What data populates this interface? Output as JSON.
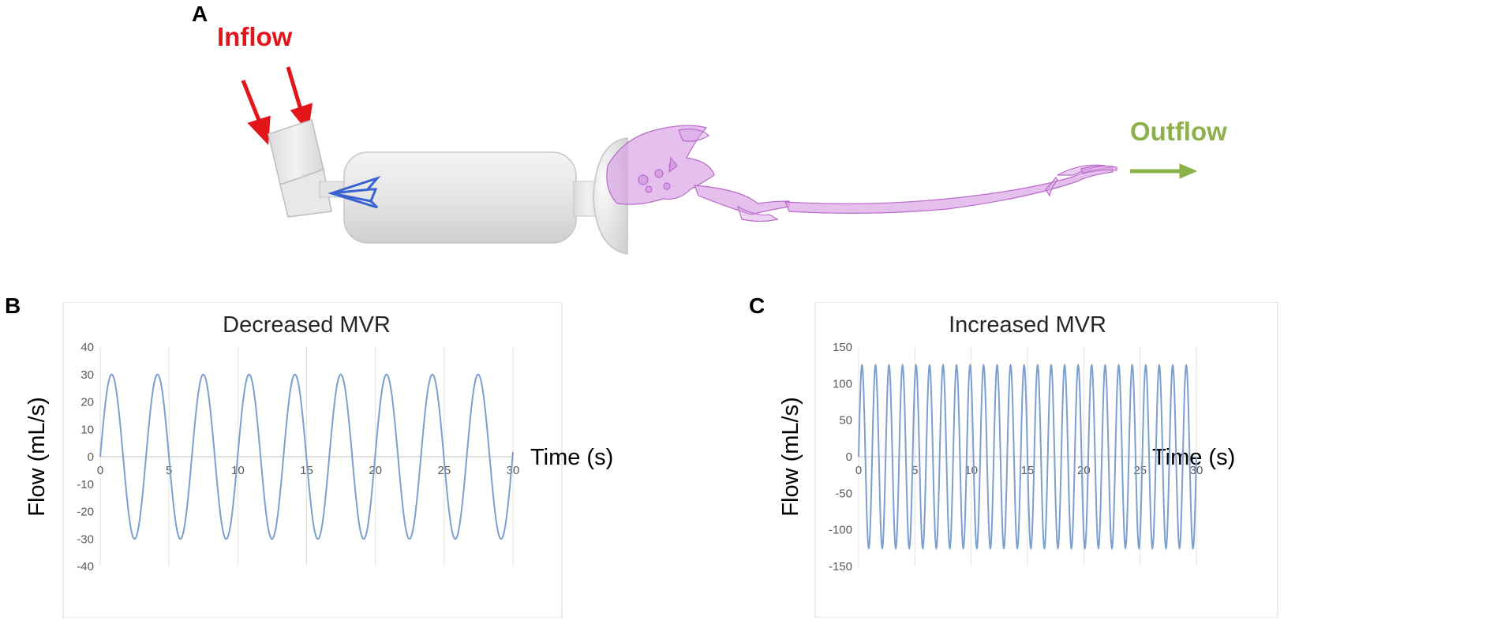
{
  "panels": {
    "a": {
      "letter": "A"
    },
    "b": {
      "letter": "B"
    },
    "c": {
      "letter": "C"
    }
  },
  "model": {
    "inflow_label": "Inflow",
    "outflow_label": "Outflow",
    "inflow_color": "#e2151b",
    "outflow_color": "#8cb04a",
    "chamber_color": "#e6e6e6",
    "valve_color": "#3a63d1",
    "airway_color": "#d89ee3"
  },
  "chart_data": [
    {
      "type": "line",
      "title": "Decreased MVR",
      "xlabel": "Time (s)",
      "ylabel": "Flow (mL/s)",
      "xlim": [
        0,
        30
      ],
      "ylim": [
        -40,
        40
      ],
      "x_ticks": [
        0,
        5,
        10,
        15,
        20,
        25,
        30
      ],
      "y_ticks": [
        40,
        30,
        20,
        10,
        0,
        -10,
        -20,
        -30,
        -40
      ],
      "grid": "vertical",
      "line_color": "#7b9fcf",
      "series": [
        {
          "amplitude": 30,
          "period": 3.33,
          "cycles": 9,
          "x": [
            0,
            0.83,
            2.5,
            4.17,
            5.83,
            7.5,
            9.17,
            10.83,
            12.5,
            14.17,
            15.83,
            17.5,
            19.17,
            20.83,
            22.5,
            24.17,
            25.83,
            27.5,
            29.17,
            30
          ],
          "y": [
            0,
            30,
            -30,
            30,
            -30,
            30,
            -30,
            30,
            -30,
            30,
            -30,
            30,
            -30,
            30,
            -30,
            30,
            -30,
            30,
            -30,
            0
          ]
        }
      ]
    },
    {
      "type": "line",
      "title": "Increased MVR",
      "xlabel": "Time (s)",
      "ylabel": "Flow (mL/s)",
      "xlim": [
        0,
        30
      ],
      "ylim": [
        -150,
        150
      ],
      "x_ticks": [
        0,
        5,
        10,
        15,
        20,
        25,
        30
      ],
      "y_ticks": [
        150,
        100,
        50,
        0,
        -50,
        -100,
        -150
      ],
      "grid": "vertical",
      "line_color": "#7b9fcf",
      "series": [
        {
          "amplitude": 125,
          "period": 1.2,
          "cycles": 25,
          "x": [
            0,
            0.3,
            0.9,
            1.5,
            2.1,
            2.7
          ],
          "y": [
            0,
            125,
            -125,
            125,
            -125,
            125
          ]
        }
      ]
    }
  ]
}
